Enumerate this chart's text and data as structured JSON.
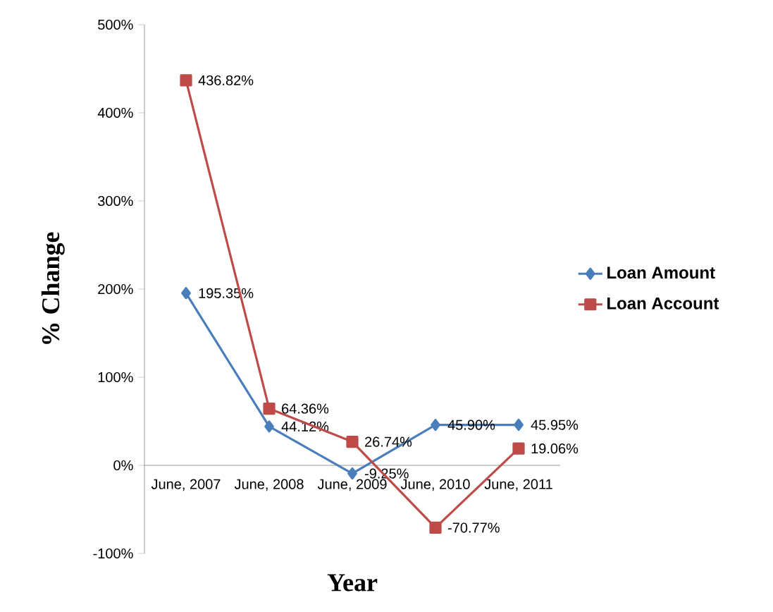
{
  "chart_data": {
    "type": "line",
    "xlabel": "Year",
    "ylabel": "% Change",
    "categories": [
      "June, 2007",
      "June, 2008",
      "June, 2009",
      "June, 2010",
      "June, 2011"
    ],
    "series": [
      {
        "name": "Loan Amount",
        "color": "#4a7ebb",
        "marker": "diamond",
        "values": [
          195.35,
          44.12,
          -9.25,
          45.9,
          45.95
        ],
        "value_labels": [
          "195.35%",
          "44.12%",
          "-9.25%",
          "45.90%",
          "45.95%"
        ]
      },
      {
        "name": "Loan Account",
        "color": "#be4b48",
        "marker": "square",
        "values": [
          436.82,
          64.36,
          26.74,
          -70.77,
          19.06
        ],
        "value_labels": [
          "436.82%",
          "64.36%",
          "26.74%",
          "-70.77%",
          "19.06%"
        ]
      }
    ],
    "ylim": [
      -100,
      500
    ],
    "yticks": [
      {
        "value": -100,
        "label": "-100%"
      },
      {
        "value": 0,
        "label": "0%"
      },
      {
        "value": 100,
        "label": "100%"
      },
      {
        "value": 200,
        "label": "200%"
      },
      {
        "value": 300,
        "label": "300%"
      },
      {
        "value": 400,
        "label": "400%"
      },
      {
        "value": 500,
        "label": "500%"
      }
    ],
    "grid": false,
    "legend": "right",
    "line_style": "solid"
  }
}
